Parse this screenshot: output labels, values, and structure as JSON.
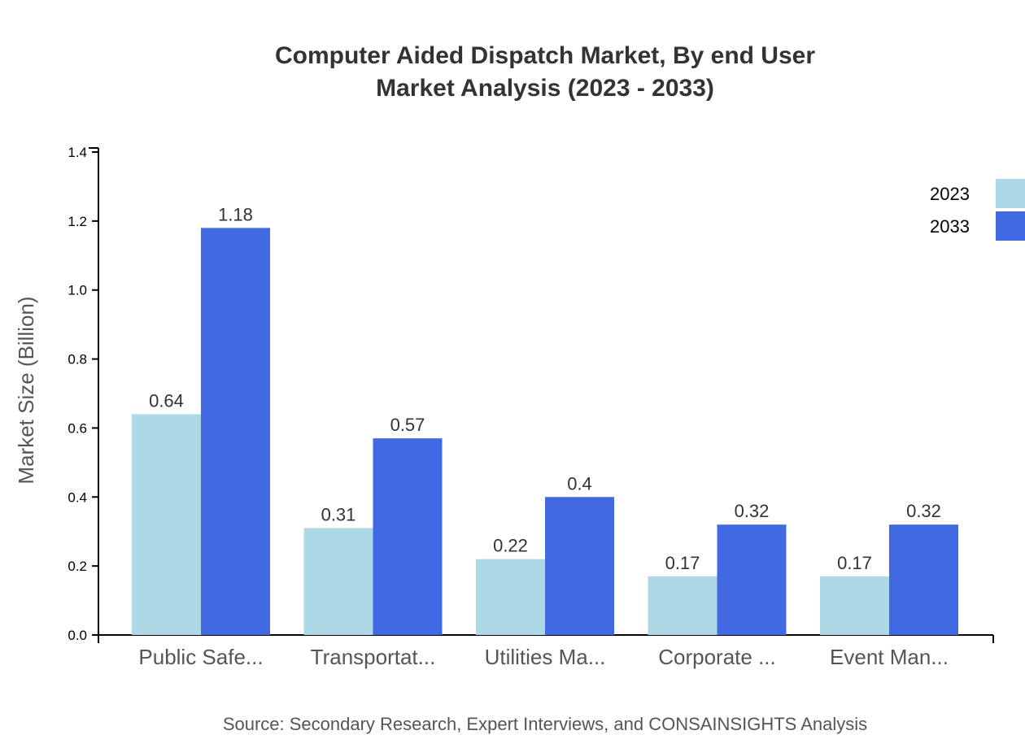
{
  "chart_data": {
    "type": "bar",
    "title": "Computer Aided Dispatch Market, By end User",
    "subtitle": "Market Analysis (2023 - 2033)",
    "xlabel": "",
    "ylabel": "Market Size (Billion)",
    "ylim": [
      0,
      1.4
    ],
    "yticks": [
      "0.0",
      "0.2",
      "0.4",
      "0.6",
      "0.8",
      "1.0",
      "1.2",
      "1.4"
    ],
    "categories": [
      "Public Safe...",
      "Transportat...",
      "Utilities Ma...",
      "Corporate ...",
      "Event Man..."
    ],
    "series": [
      {
        "name": "2023",
        "color": "#add8e6",
        "values": [
          0.64,
          0.31,
          0.22,
          0.17,
          0.17
        ]
      },
      {
        "name": "2033",
        "color": "#4169e1",
        "values": [
          1.18,
          0.57,
          0.4,
          0.32,
          0.32
        ]
      }
    ],
    "grid": false,
    "legend": "top-right",
    "source": "Source: Secondary Research, Expert Interviews, and CONSAINSIGHTS Analysis"
  }
}
